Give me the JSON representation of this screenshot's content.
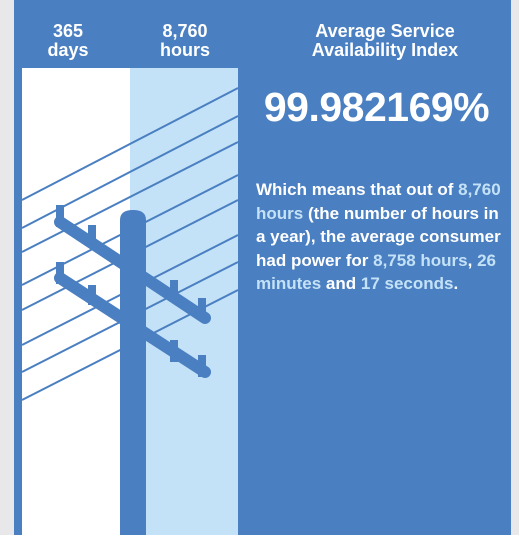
{
  "header": {
    "days_value": "365",
    "days_unit": "days",
    "hours_value": "8,760",
    "hours_unit": "hours",
    "title": "Average Service Availability Index"
  },
  "index_value": "99.982169%",
  "description": {
    "segments": [
      {
        "text": "Which means that out of ",
        "highlight": false
      },
      {
        "text": "8,760 hours",
        "highlight": true
      },
      {
        "text": " (the number of hours in a year), the average consumer had power for ",
        "highlight": false
      },
      {
        "text": "8,758 hours",
        "highlight": true
      },
      {
        "text": ", ",
        "highlight": false
      },
      {
        "text": "26 minutes",
        "highlight": true
      },
      {
        "text": " and ",
        "highlight": false
      },
      {
        "text": "17 seconds",
        "highlight": true
      },
      {
        "text": ".",
        "highlight": false
      }
    ]
  }
}
